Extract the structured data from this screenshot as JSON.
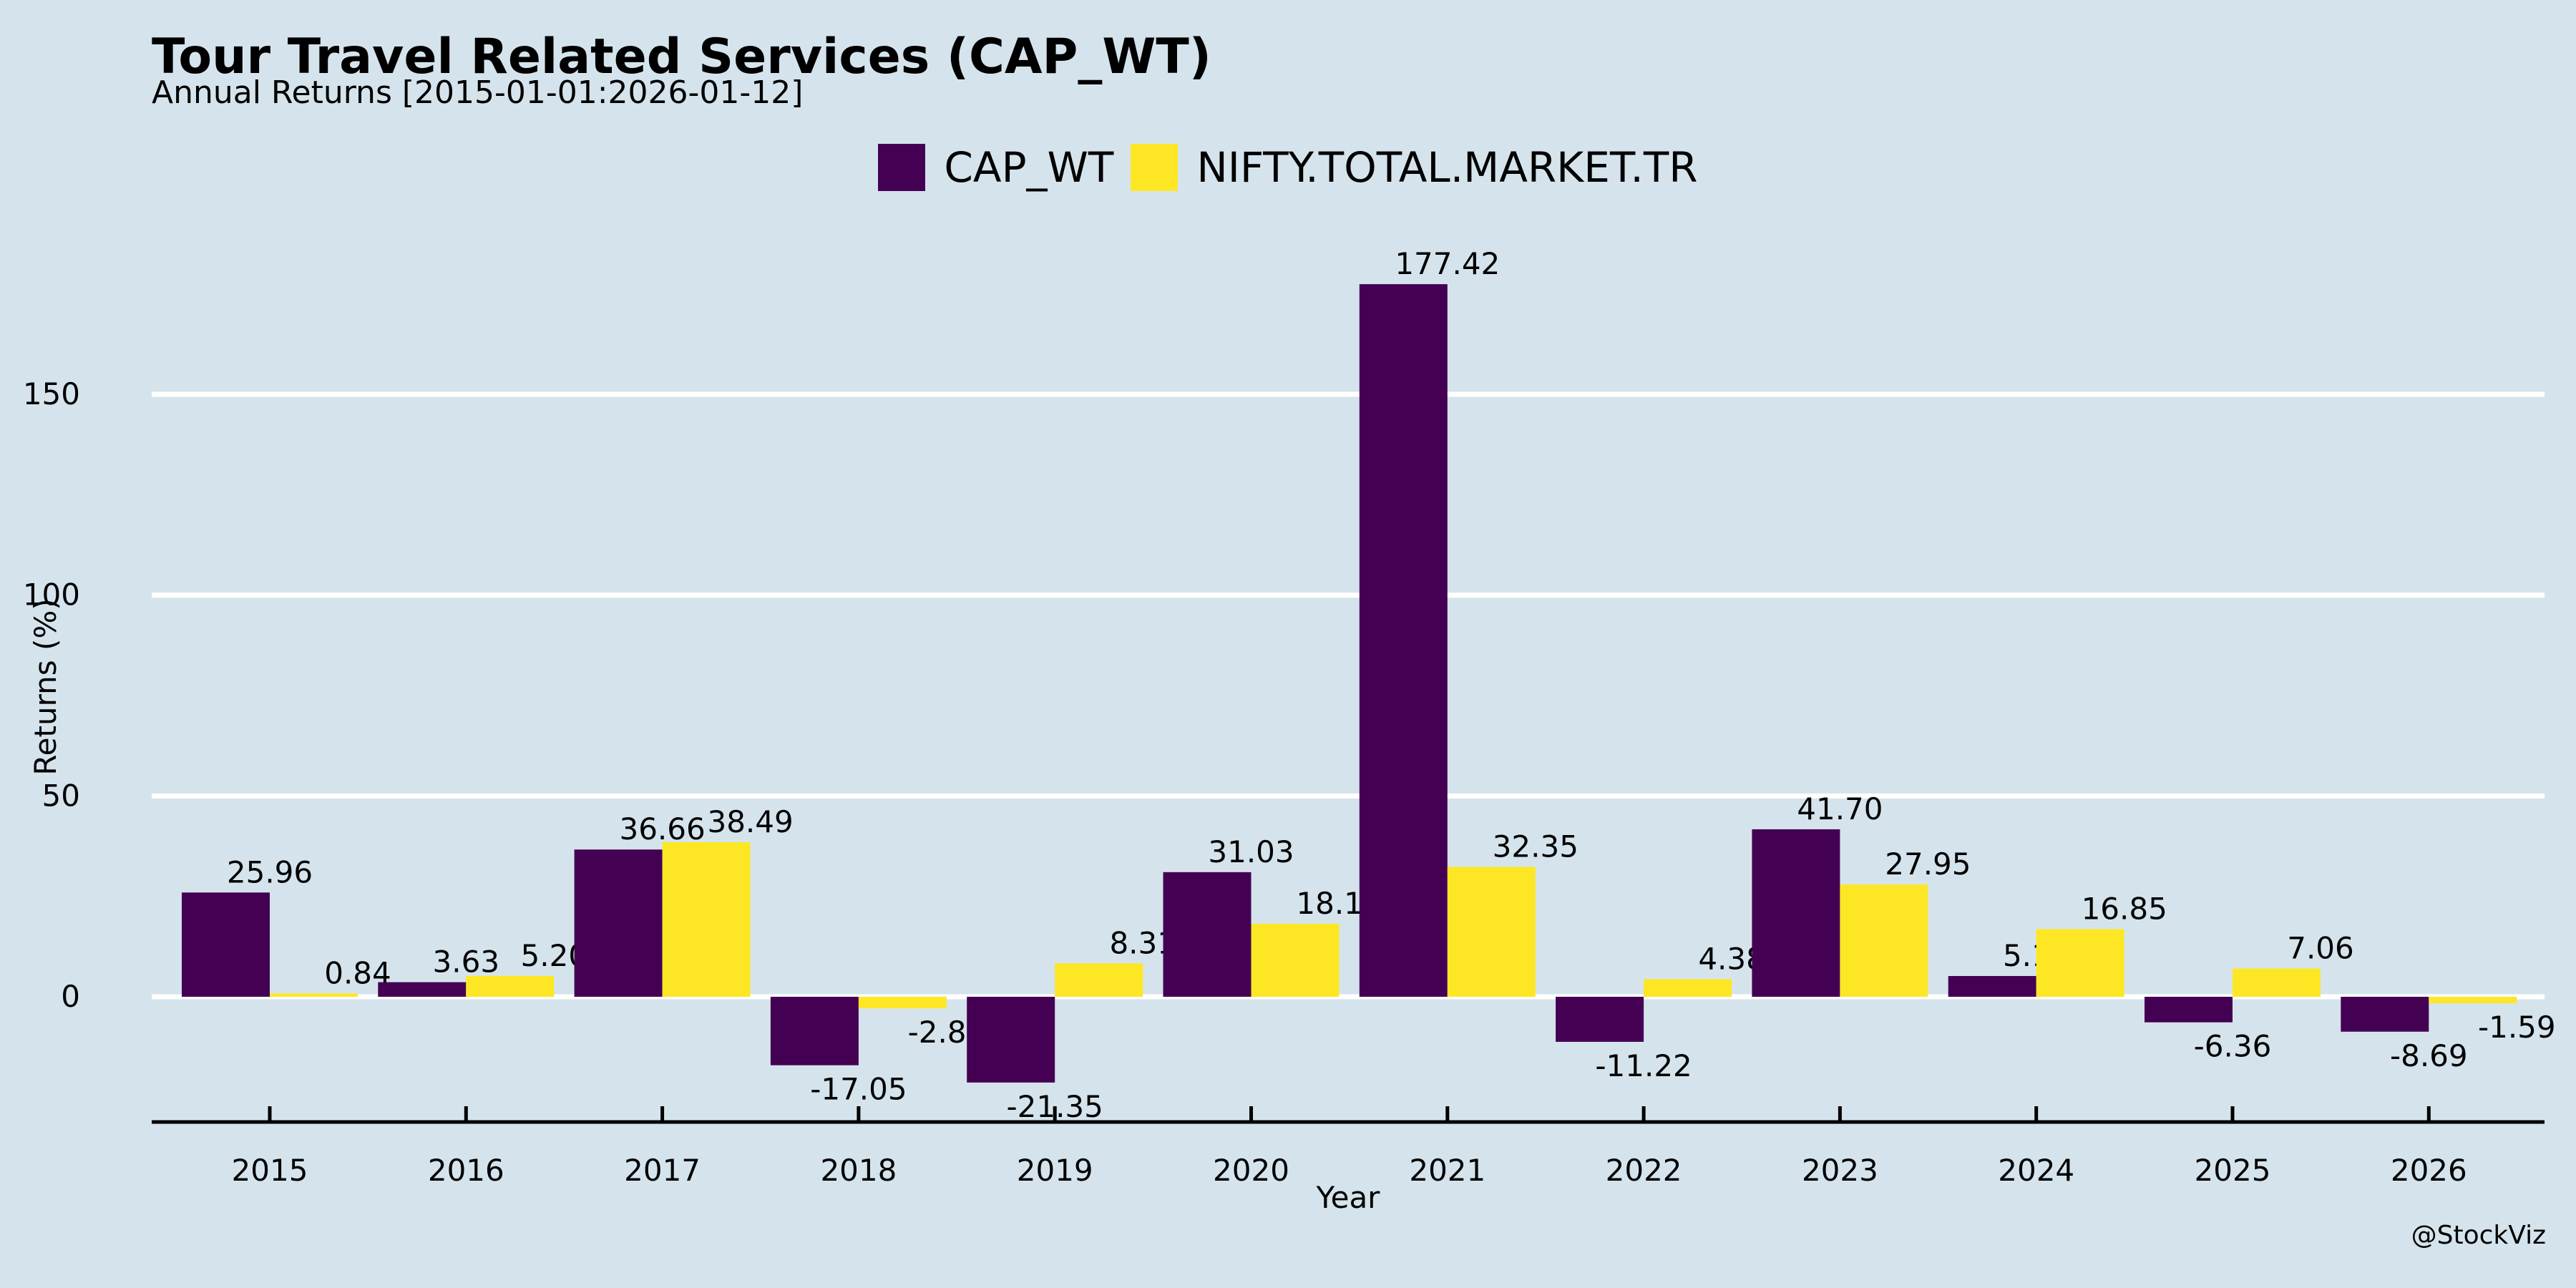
{
  "chart_data": {
    "type": "bar",
    "title": "Tour Travel Related Services (CAP_WT)",
    "subtitle": "Annual Returns [2015-01-01:2026-01-12]",
    "xlabel": "Year",
    "ylabel": "Returns (%)",
    "ylim": [
      -31,
      190
    ],
    "yticks": [
      0,
      50,
      100,
      150
    ],
    "grid": true,
    "legend_position": "top-center",
    "categories": [
      "2015",
      "2016",
      "2017",
      "2018",
      "2019",
      "2020",
      "2021",
      "2022",
      "2023",
      "2024",
      "2025",
      "2026"
    ],
    "series": [
      {
        "name": "CAP_WT",
        "color": "#440154",
        "values": [
          25.96,
          3.63,
          36.66,
          -17.05,
          -21.35,
          31.03,
          177.42,
          -11.22,
          41.7,
          5.17,
          -6.36,
          -8.69
        ]
      },
      {
        "name": "NIFTY.TOTAL.MARKET.TR",
        "color": "#fde725",
        "values": [
          0.84,
          5.2,
          38.49,
          -2.87,
          8.31,
          18.18,
          32.35,
          4.38,
          27.95,
          16.85,
          7.06,
          -1.59
        ]
      }
    ]
  },
  "credit": "@StockViz"
}
